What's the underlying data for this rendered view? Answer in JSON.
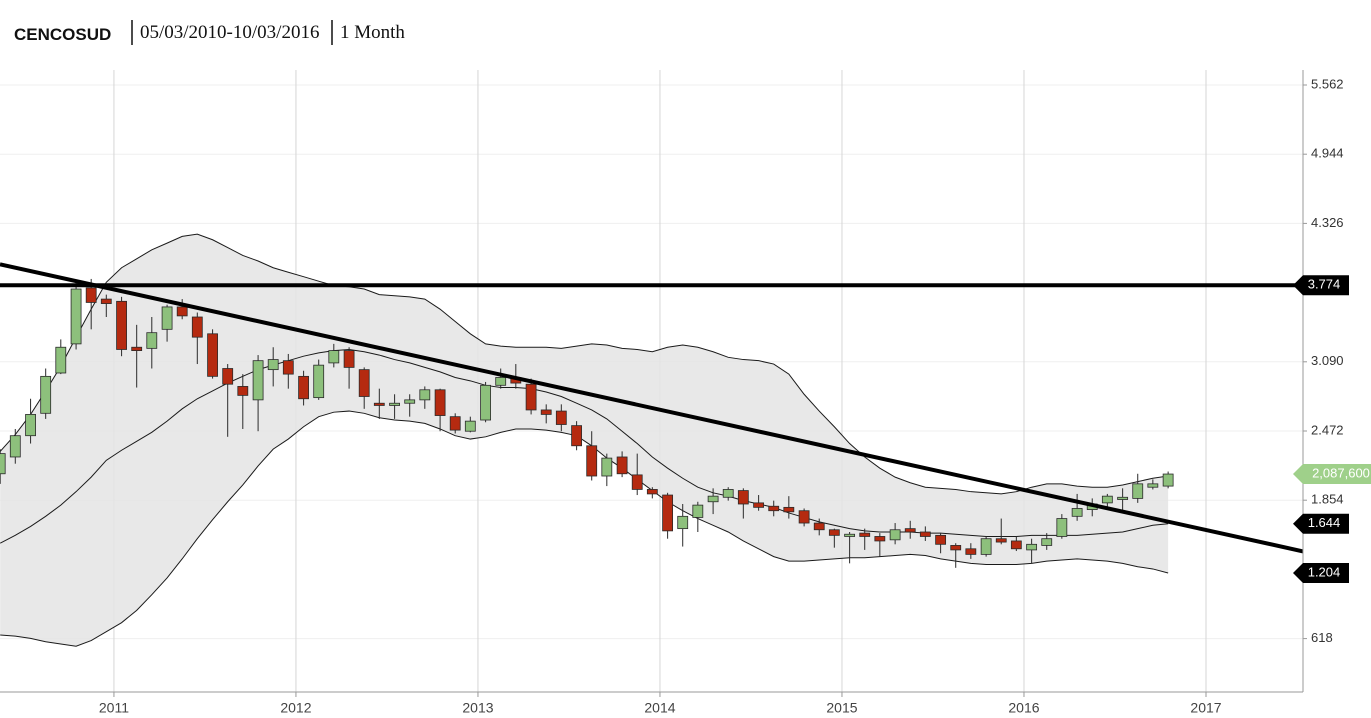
{
  "header": {
    "symbol": "CENCOSUD",
    "range": "05/03/2010-10/03/2016",
    "interval": "1 Month"
  },
  "chart_data": {
    "type": "candlestick",
    "x": [
      2010.375,
      2010.458,
      2010.542,
      2010.625,
      2010.708,
      2010.792,
      2010.875,
      2010.958,
      2011.042,
      2011.125,
      2011.208,
      2011.292,
      2011.375,
      2011.458,
      2011.542,
      2011.625,
      2011.708,
      2011.792,
      2011.875,
      2011.958,
      2012.042,
      2012.125,
      2012.208,
      2012.292,
      2012.375,
      2012.458,
      2012.542,
      2012.625,
      2012.708,
      2012.792,
      2012.875,
      2012.958,
      2013.042,
      2013.125,
      2013.208,
      2013.292,
      2013.375,
      2013.458,
      2013.542,
      2013.625,
      2013.708,
      2013.792,
      2013.875,
      2013.958,
      2014.042,
      2014.125,
      2014.208,
      2014.292,
      2014.375,
      2014.458,
      2014.542,
      2014.625,
      2014.708,
      2014.792,
      2014.875,
      2014.958,
      2015.042,
      2015.125,
      2015.208,
      2015.292,
      2015.375,
      2015.458,
      2015.542,
      2015.625,
      2015.708,
      2015.792,
      2015.875,
      2015.958,
      2016.042,
      2016.125,
      2016.208,
      2016.292,
      2016.375,
      2016.458,
      2016.542,
      2016.625,
      2016.708,
      2016.792
    ],
    "open": [
      2090,
      2240,
      2430,
      2630,
      2990,
      3250,
      3750,
      3650,
      3630,
      3220,
      3210,
      3380,
      3580,
      3490,
      3340,
      3030,
      2870,
      2750,
      3020,
      3100,
      2960,
      2770,
      3080,
      3190,
      3020,
      2720,
      2700,
      2720,
      2750,
      2840,
      2600,
      2470,
      2570,
      2880,
      2950,
      2890,
      2660,
      2650,
      2520,
      2340,
      2070,
      2240,
      2080,
      1950,
      1900,
      1600,
      1700,
      1840,
      1880,
      1940,
      1830,
      1800,
      1790,
      1760,
      1650,
      1590,
      1530,
      1560,
      1530,
      1500,
      1600,
      1570,
      1540,
      1450,
      1420,
      1370,
      1510,
      1490,
      1410,
      1450,
      1530,
      1710,
      1770,
      1830,
      1860,
      1870,
      1970,
      1980
    ],
    "high": [
      2310,
      2490,
      2760,
      3030,
      3290,
      3810,
      3830,
      3690,
      3670,
      3420,
      3490,
      3600,
      3650,
      3530,
      3380,
      3070,
      2980,
      3150,
      3220,
      3160,
      3010,
      3110,
      3250,
      3220,
      3040,
      2850,
      2800,
      2800,
      2870,
      2850,
      2630,
      2600,
      2910,
      3030,
      3070,
      2940,
      2710,
      2710,
      2560,
      2470,
      2270,
      2290,
      2270,
      1970,
      1920,
      1820,
      1840,
      1960,
      1970,
      1960,
      1900,
      1850,
      1890,
      1780,
      1690,
      1600,
      1570,
      1600,
      1560,
      1650,
      1670,
      1620,
      1560,
      1470,
      1470,
      1530,
      1690,
      1530,
      1510,
      1560,
      1730,
      1910,
      1870,
      1910,
      1960,
      2090,
      2040,
      2110
    ],
    "low": [
      2000,
      2180,
      2360,
      2580,
      2980,
      3200,
      3380,
      3490,
      3140,
      2860,
      3030,
      3270,
      3470,
      3070,
      2940,
      2420,
      2490,
      2470,
      2870,
      2850,
      2700,
      2750,
      3040,
      2850,
      2670,
      2580,
      2580,
      2600,
      2670,
      2470,
      2450,
      2460,
      2550,
      2850,
      2850,
      2620,
      2540,
      2470,
      2300,
      2030,
      1980,
      2060,
      1900,
      1870,
      1510,
      1440,
      1570,
      1730,
      1850,
      1690,
      1760,
      1710,
      1690,
      1620,
      1540,
      1430,
      1290,
      1410,
      1350,
      1460,
      1510,
      1490,
      1380,
      1250,
      1330,
      1350,
      1460,
      1400,
      1290,
      1410,
      1510,
      1670,
      1710,
      1790,
      1760,
      1830,
      1950,
      1960
    ],
    "close": [
      2270,
      2430,
      2620,
      2960,
      3220,
      3740,
      3620,
      3610,
      3200,
      3190,
      3350,
      3580,
      3500,
      3310,
      2960,
      2890,
      2790,
      3100,
      3110,
      2980,
      2760,
      3060,
      3190,
      3040,
      2780,
      2700,
      2720,
      2750,
      2840,
      2610,
      2480,
      2560,
      2880,
      2950,
      2900,
      2660,
      2620,
      2530,
      2340,
      2070,
      2230,
      2090,
      1950,
      1910,
      1580,
      1710,
      1810,
      1890,
      1950,
      1820,
      1790,
      1760,
      1750,
      1650,
      1590,
      1540,
      1550,
      1530,
      1490,
      1590,
      1570,
      1530,
      1460,
      1410,
      1370,
      1510,
      1480,
      1420,
      1460,
      1510,
      1690,
      1780,
      1820,
      1890,
      1880,
      2000,
      2000,
      2087.6
    ],
    "up_color": "#8dc07c",
    "down_color": "#b52a10",
    "outline": "#2a2a2a",
    "bands": {
      "color": "#1a1a1a",
      "fill": "#e4e4e4",
      "upper": [
        2290,
        2440,
        2620,
        2830,
        3050,
        3310,
        3560,
        3800,
        3930,
        4010,
        4090,
        4150,
        4210,
        4230,
        4180,
        4110,
        4040,
        3990,
        3930,
        3890,
        3850,
        3810,
        3770,
        3760,
        3740,
        3690,
        3680,
        3670,
        3650,
        3560,
        3450,
        3340,
        3250,
        3230,
        3220,
        3220,
        3220,
        3210,
        3230,
        3250,
        3240,
        3210,
        3200,
        3180,
        3220,
        3240,
        3220,
        3180,
        3130,
        3110,
        3100,
        3070,
        2980,
        2800,
        2650,
        2510,
        2360,
        2240,
        2140,
        2060,
        2010,
        1970,
        1960,
        1950,
        1930,
        1920,
        1910,
        1930,
        1970,
        2000,
        2000,
        1980,
        1970,
        1970,
        1990,
        2020,
        2050,
        2070
      ],
      "middle": [
        1470,
        1540,
        1620,
        1710,
        1810,
        1930,
        2060,
        2210,
        2300,
        2380,
        2460,
        2560,
        2670,
        2760,
        2830,
        2900,
        2960,
        3020,
        3060,
        3100,
        3140,
        3170,
        3190,
        3200,
        3180,
        3150,
        3110,
        3080,
        3040,
        3000,
        2950,
        2920,
        2880,
        2860,
        2860,
        2850,
        2820,
        2780,
        2720,
        2660,
        2580,
        2470,
        2360,
        2240,
        2140,
        2050,
        1970,
        1920,
        1890,
        1850,
        1820,
        1790,
        1740,
        1700,
        1660,
        1630,
        1600,
        1580,
        1570,
        1570,
        1570,
        1560,
        1560,
        1550,
        1540,
        1530,
        1530,
        1530,
        1540,
        1540,
        1540,
        1540,
        1550,
        1560,
        1570,
        1600,
        1630,
        1644
      ],
      "lower": [
        650,
        640,
        620,
        590,
        570,
        550,
        600,
        680,
        760,
        870,
        1010,
        1160,
        1330,
        1510,
        1680,
        1840,
        1990,
        2160,
        2310,
        2400,
        2510,
        2600,
        2640,
        2650,
        2630,
        2590,
        2570,
        2560,
        2540,
        2490,
        2430,
        2400,
        2420,
        2460,
        2490,
        2490,
        2480,
        2460,
        2430,
        2340,
        2230,
        2140,
        2040,
        1940,
        1840,
        1760,
        1690,
        1630,
        1570,
        1490,
        1420,
        1350,
        1310,
        1310,
        1320,
        1330,
        1340,
        1340,
        1350,
        1360,
        1370,
        1360,
        1330,
        1310,
        1290,
        1280,
        1280,
        1280,
        1290,
        1310,
        1320,
        1330,
        1320,
        1310,
        1290,
        1260,
        1240,
        1204
      ]
    },
    "trendline": {
      "x": [
        2010.374,
        2017.533
      ],
      "values": [
        3960,
        1397
      ],
      "color": "#000"
    },
    "hline": {
      "value": 3774,
      "label": "3.774",
      "color": "#000"
    },
    "markers": [
      {
        "value": 2087.6,
        "label": "2,087,600",
        "color": "#9fd08a"
      },
      {
        "value": 1644,
        "label": "1.644",
        "color": "#000"
      },
      {
        "value": 1204,
        "label": "1.204",
        "color": "#000"
      }
    ],
    "xlim": [
      2010.374,
      2017.533
    ],
    "xticks": [
      2011,
      2012,
      2013,
      2014,
      2015,
      2016,
      2017
    ],
    "ylim": [
      141,
      5696
    ],
    "yticks": [
      {
        "value": 5562,
        "label": "5.562"
      },
      {
        "value": 4944,
        "label": "4.944"
      },
      {
        "value": 4326,
        "label": "4.326"
      },
      {
        "value": 3090,
        "label": "3.090"
      },
      {
        "value": 2472,
        "label": "2.472"
      },
      {
        "value": 1854,
        "label": "1.854"
      },
      {
        "value": 618,
        "label": "618"
      }
    ],
    "grid": true
  }
}
